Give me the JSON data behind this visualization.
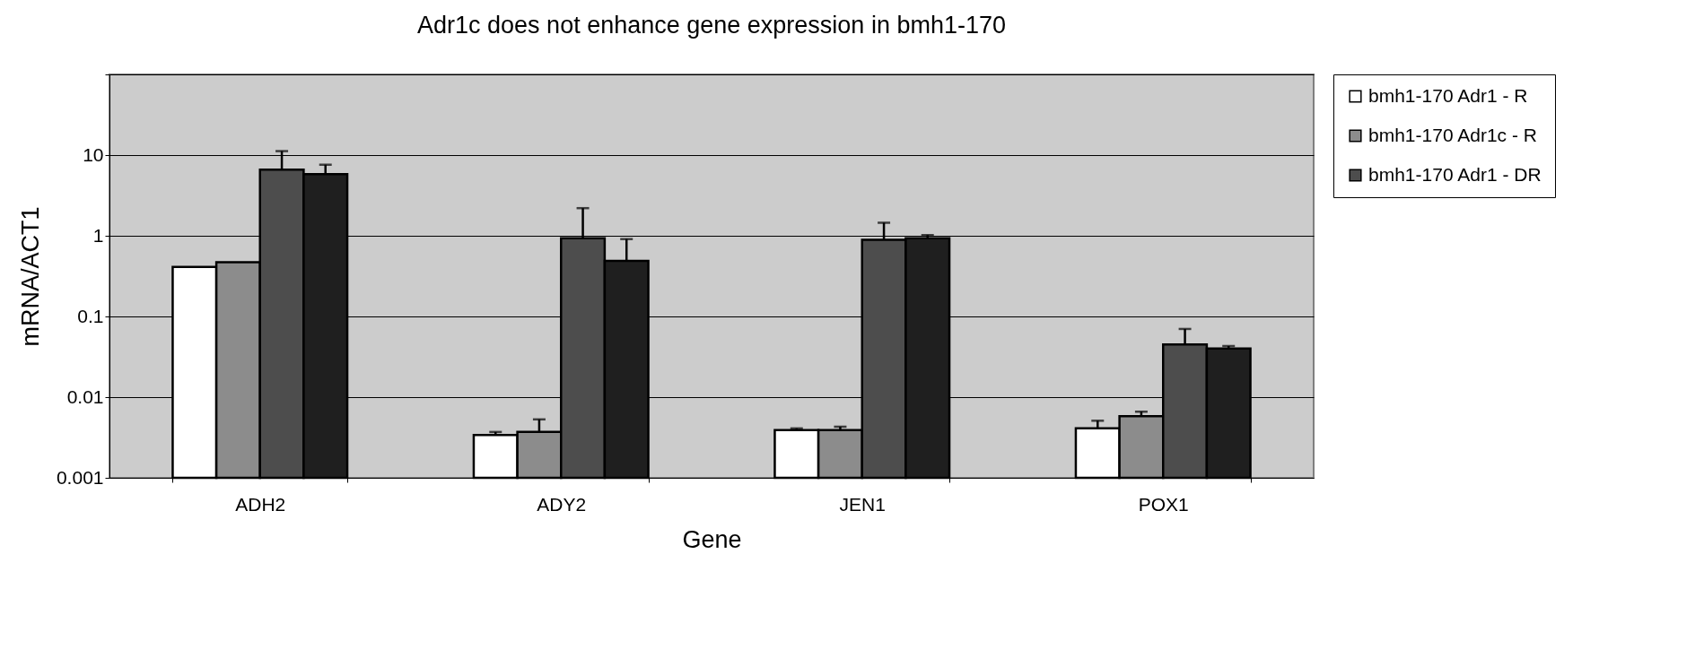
{
  "chart_data": {
    "type": "bar",
    "title": "Adr1c does not enhance gene expression in bmh1-170",
    "xlabel": "Gene",
    "ylabel": "mRNA/ACT1",
    "categories": [
      "ADH2",
      "ADY2",
      "JEN1",
      "POX1"
    ],
    "series": [
      {
        "name": "bmh1-170 Adr1 - R",
        "color": "#ffffff",
        "values": [
          0.41,
          0.0034,
          0.0039,
          0.0041
        ],
        "errors": [
          null,
          [
            0.0034,
            0.0037
          ],
          [
            0.0039,
            0.0041
          ],
          [
            0.0041,
            0.0051
          ]
        ]
      },
      {
        "name": "bmh1-170 Adr1c - R",
        "color": "#8c8c8c",
        "values": [
          0.47,
          0.0037,
          0.0039,
          0.0058
        ],
        "errors": [
          null,
          [
            0.0037,
            0.0053
          ],
          [
            0.0039,
            0.0043
          ],
          [
            0.0058,
            0.0066
          ]
        ]
      },
      {
        "name": "bmh1-170 Adr1 - DR",
        "color": "#4d4d4d",
        "values": [
          6.6,
          0.93,
          0.89,
          0.045
        ],
        "errors": [
          [
            6.6,
            11.2
          ],
          [
            0.93,
            2.2
          ],
          [
            0.89,
            1.45
          ],
          [
            0.045,
            0.07
          ]
        ]
      },
      {
        "color": "#1f1f1f",
        "values": [
          5.8,
          0.49,
          0.93,
          0.04
        ],
        "errors": [
          [
            5.8,
            7.6
          ],
          [
            0.49,
            0.91
          ],
          [
            0.93,
            1.02
          ],
          [
            0.04,
            0.043
          ]
        ]
      }
    ],
    "log": true,
    "ylim": [
      0.001,
      100
    ],
    "yticks": [
      0.001,
      0.01,
      0.1,
      1,
      10,
      {
        "value": 100,
        "label": null
      }
    ],
    "grid": "y",
    "legend": "right"
  }
}
